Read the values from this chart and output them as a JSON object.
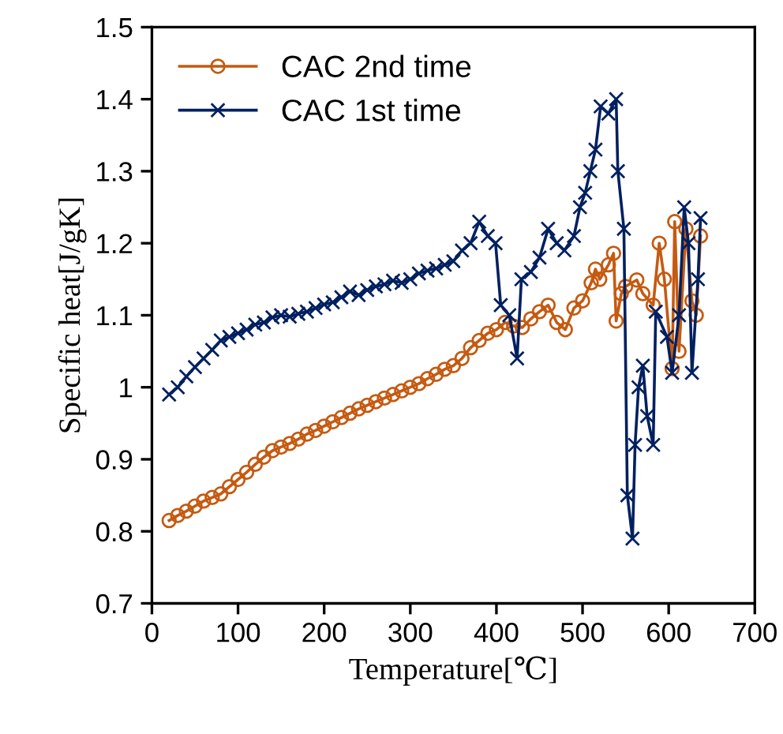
{
  "chart_data": {
    "type": "line",
    "xlabel": "Temperature[℃]",
    "ylabel": "Specific heat[J/gK]",
    "xlim": [
      0,
      700
    ],
    "xticks": [
      0,
      100,
      200,
      300,
      400,
      500,
      600,
      700
    ],
    "ylim": [
      0.7,
      1.5
    ],
    "yticks": [
      0.7,
      0.8,
      0.9,
      1,
      1.1,
      1.2,
      1.3,
      1.4,
      1.5
    ],
    "grid": false,
    "legend": "top left",
    "series": [
      {
        "name": "CAC 2nd time",
        "color": "#c55a11",
        "marker": "circle",
        "x": [
          20,
          30,
          40,
          50,
          60,
          70,
          80,
          90,
          100,
          110,
          120,
          130,
          140,
          150,
          160,
          170,
          180,
          190,
          200,
          210,
          220,
          230,
          240,
          250,
          260,
          270,
          280,
          290,
          300,
          310,
          320,
          330,
          340,
          350,
          360,
          370,
          380,
          390,
          400,
          410,
          420,
          430,
          440,
          450,
          460,
          470,
          480,
          490,
          500,
          510,
          515,
          520,
          530,
          536,
          539,
          545,
          550,
          563,
          570,
          582,
          589,
          595,
          604,
          607,
          612,
          620,
          627,
          632,
          637
        ],
        "values": [
          0.815,
          0.822,
          0.828,
          0.835,
          0.842,
          0.847,
          0.852,
          0.862,
          0.872,
          0.882,
          0.893,
          0.903,
          0.912,
          0.917,
          0.922,
          0.928,
          0.935,
          0.94,
          0.946,
          0.952,
          0.958,
          0.964,
          0.97,
          0.975,
          0.98,
          0.985,
          0.99,
          0.995,
          1.0,
          1.005,
          1.012,
          1.018,
          1.025,
          1.03,
          1.04,
          1.055,
          1.065,
          1.075,
          1.08,
          1.09,
          1.085,
          1.083,
          1.095,
          1.105,
          1.114,
          1.09,
          1.08,
          1.11,
          1.12,
          1.145,
          1.164,
          1.15,
          1.17,
          1.186,
          1.092,
          1.13,
          1.14,
          1.149,
          1.13,
          1.114,
          1.2,
          1.15,
          1.026,
          1.23,
          1.05,
          1.22,
          1.12,
          1.1,
          1.21
        ]
      },
      {
        "name": "CAC 1st time",
        "color": "#002060",
        "marker": "cross",
        "x": [
          20,
          30,
          40,
          50,
          60,
          70,
          80,
          90,
          100,
          110,
          120,
          130,
          140,
          150,
          160,
          170,
          180,
          190,
          200,
          210,
          220,
          230,
          240,
          250,
          260,
          270,
          280,
          290,
          300,
          310,
          320,
          330,
          340,
          350,
          360,
          370,
          380,
          390,
          399,
          405,
          415,
          424,
          429,
          440,
          450,
          460,
          470,
          479,
          490,
          497,
          503,
          509,
          515,
          521,
          530,
          539,
          541,
          548,
          552,
          558,
          561,
          565,
          570,
          575,
          582,
          585,
          598,
          604,
          612,
          618,
          623,
          627,
          634,
          637
        ],
        "values": [
          0.99,
          1.0,
          1.015,
          1.028,
          1.04,
          1.052,
          1.065,
          1.07,
          1.075,
          1.08,
          1.087,
          1.09,
          1.097,
          1.1,
          1.098,
          1.102,
          1.105,
          1.11,
          1.115,
          1.118,
          1.125,
          1.133,
          1.128,
          1.135,
          1.14,
          1.143,
          1.148,
          1.145,
          1.15,
          1.158,
          1.162,
          1.165,
          1.17,
          1.175,
          1.19,
          1.2,
          1.23,
          1.21,
          1.2,
          1.114,
          1.1,
          1.04,
          1.15,
          1.16,
          1.18,
          1.22,
          1.2,
          1.19,
          1.21,
          1.25,
          1.27,
          1.3,
          1.33,
          1.39,
          1.38,
          1.4,
          1.3,
          1.22,
          0.85,
          0.79,
          0.92,
          1.0,
          1.03,
          0.96,
          0.92,
          1.105,
          1.07,
          1.02,
          1.1,
          1.25,
          1.2,
          1.02,
          1.15,
          1.235
        ]
      }
    ]
  }
}
